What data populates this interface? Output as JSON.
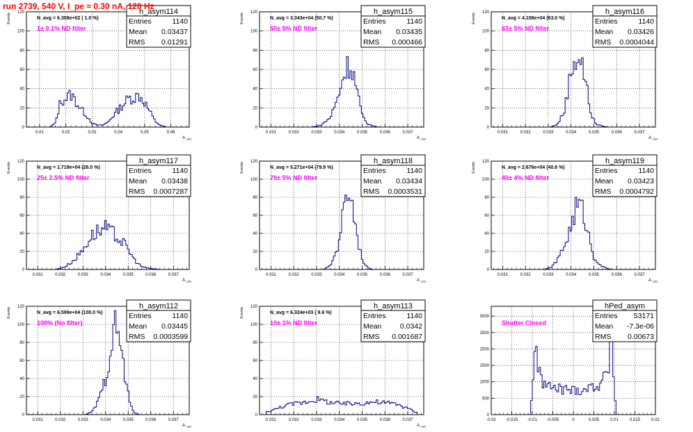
{
  "run_title": "run 2739,   540 V, I_pe ≈ 0.30 nA, 120 Hz",
  "colors": {
    "title": "#ff0000",
    "histogram": "#000080",
    "annotation": "#ff00ff",
    "grid": "#000000"
  },
  "stats_labels": {
    "entries": "Entries",
    "mean": "Mean",
    "rms": "RMS"
  },
  "chart_data": [
    {
      "type": "histogram",
      "name": "h_asym114",
      "xlabel": "A",
      "xlabel_sub": "LED",
      "ylabel": "Events",
      "xlim": [
        0.005,
        0.067
      ],
      "ylim": [
        0,
        120
      ],
      "grid": true,
      "xticks": [
        0.01,
        0.02,
        0.03,
        0.04,
        0.05,
        0.06
      ],
      "xticklabels": [
        "0.01",
        "0.02",
        "0.03",
        "0.04",
        "0.05",
        "0.06"
      ],
      "yticks": [
        0,
        20,
        40,
        60,
        80,
        100,
        120
      ],
      "yticklabels": [
        "0",
        "20",
        "40",
        "60",
        "80",
        "100",
        "120"
      ],
      "nbins": 100,
      "profile": [
        [
          0.014,
          0
        ],
        [
          0.016,
          4
        ],
        [
          0.018,
          27
        ],
        [
          0.02,
          30
        ],
        [
          0.022,
          34
        ],
        [
          0.024,
          26
        ],
        [
          0.026,
          18
        ],
        [
          0.028,
          12
        ],
        [
          0.03,
          4
        ],
        [
          0.032,
          2
        ],
        [
          0.034,
          2
        ],
        [
          0.036,
          5
        ],
        [
          0.038,
          12
        ],
        [
          0.04,
          18
        ],
        [
          0.042,
          24
        ],
        [
          0.044,
          30
        ],
        [
          0.046,
          31
        ],
        [
          0.048,
          33
        ],
        [
          0.05,
          26
        ],
        [
          0.052,
          16
        ],
        [
          0.054,
          6
        ],
        [
          0.056,
          2
        ],
        [
          0.058,
          0
        ]
      ],
      "n_avg_text": "N_avg = 6.308e+02 ( 1.0 %)",
      "filter_text": "1± 0.1% ND filter",
      "stats": {
        "entries": "1140",
        "mean": "0.03437",
        "rms": "0.01291"
      }
    },
    {
      "type": "histogram",
      "name": "h_asym115",
      "xlabel": "A",
      "xlabel_sub": "LED",
      "ylabel": "Events",
      "xlim": [
        0.0305,
        0.0377
      ],
      "ylim": [
        0,
        120
      ],
      "grid": true,
      "xticks": [
        0.031,
        0.032,
        0.033,
        0.034,
        0.035,
        0.036,
        0.037
      ],
      "xticklabels": [
        "0.031",
        "0.032",
        "0.033",
        "0.034",
        "0.035",
        "0.036",
        "0.037"
      ],
      "yticks": [
        0,
        20,
        40,
        60,
        80,
        100,
        120
      ],
      "yticklabels": [
        "0",
        "20",
        "40",
        "60",
        "80",
        "100",
        "120"
      ],
      "nbins": 100,
      "profile": [
        [
          0.0328,
          0
        ],
        [
          0.0332,
          2
        ],
        [
          0.0336,
          10
        ],
        [
          0.0339,
          28
        ],
        [
          0.0342,
          55
        ],
        [
          0.0344,
          66
        ],
        [
          0.0346,
          58
        ],
        [
          0.0348,
          35
        ],
        [
          0.035,
          12
        ],
        [
          0.0352,
          4
        ],
        [
          0.0355,
          1
        ],
        [
          0.0357,
          0
        ]
      ],
      "n_avg_text": "N_avg = 3.343e+04 (50.7 %)",
      "filter_text": "50± 5% ND filter",
      "stats": {
        "entries": "1140",
        "mean": "0.03435",
        "rms": "0.000466"
      }
    },
    {
      "type": "histogram",
      "name": "h_asym116",
      "xlabel": "A",
      "xlabel_sub": "LED",
      "ylabel": "Events",
      "xlim": [
        0.0305,
        0.0377
      ],
      "ylim": [
        0,
        120
      ],
      "grid": true,
      "xticks": [
        0.031,
        0.032,
        0.033,
        0.034,
        0.035,
        0.036,
        0.037
      ],
      "xticklabels": [
        "0.031",
        "0.032",
        "0.033",
        "0.034",
        "0.035",
        "0.036",
        "0.037"
      ],
      "yticks": [
        0,
        20,
        40,
        60,
        80,
        100,
        120
      ],
      "yticklabels": [
        "0",
        "20",
        "40",
        "60",
        "80",
        "100",
        "120"
      ],
      "nbins": 100,
      "profile": [
        [
          0.0331,
          0
        ],
        [
          0.0334,
          3
        ],
        [
          0.0337,
          16
        ],
        [
          0.0339,
          45
        ],
        [
          0.0341,
          68
        ],
        [
          0.0343,
          74
        ],
        [
          0.0345,
          65
        ],
        [
          0.0347,
          38
        ],
        [
          0.0349,
          12
        ],
        [
          0.0351,
          3
        ],
        [
          0.0354,
          1
        ],
        [
          0.0356,
          0
        ]
      ],
      "n_avg_text": "N_avg = 4.158e+04 (63.0 %)",
      "filter_text": "63± 5% ND filter",
      "stats": {
        "entries": "1140",
        "mean": "0.03426",
        "rms": "0.0004044"
      }
    },
    {
      "type": "histogram",
      "name": "h_asym117",
      "xlabel": "A",
      "xlabel_sub": "LED",
      "ylabel": "Events",
      "xlim": [
        0.0305,
        0.0377
      ],
      "ylim": [
        0,
        120
      ],
      "grid": true,
      "xticks": [
        0.031,
        0.032,
        0.033,
        0.034,
        0.035,
        0.036,
        0.037
      ],
      "xticklabels": [
        "0.031",
        "0.032",
        "0.033",
        "0.034",
        "0.035",
        "0.036",
        "0.037"
      ],
      "yticks": [
        0,
        20,
        40,
        60,
        80,
        100,
        120
      ],
      "yticklabels": [
        "0",
        "20",
        "40",
        "60",
        "80",
        "100",
        "120"
      ],
      "nbins": 100,
      "profile": [
        [
          0.0318,
          0
        ],
        [
          0.0322,
          3
        ],
        [
          0.0326,
          10
        ],
        [
          0.033,
          22
        ],
        [
          0.0333,
          35
        ],
        [
          0.0336,
          42
        ],
        [
          0.034,
          45
        ],
        [
          0.0343,
          40
        ],
        [
          0.0347,
          32
        ],
        [
          0.035,
          22
        ],
        [
          0.0353,
          10
        ],
        [
          0.0356,
          3
        ],
        [
          0.036,
          1
        ],
        [
          0.0364,
          0
        ]
      ],
      "n_avg_text": "N_avg = 1.719e+04 (26.0 %)",
      "filter_text": "25± 2.5% ND filter",
      "stats": {
        "entries": "1140",
        "mean": "0.03438",
        "rms": "0.0007287"
      }
    },
    {
      "type": "histogram",
      "name": "h_asym118",
      "xlabel": "A",
      "xlabel_sub": "LED",
      "ylabel": "Events",
      "xlim": [
        0.0305,
        0.0377
      ],
      "ylim": [
        0,
        120
      ],
      "grid": true,
      "xticks": [
        0.031,
        0.032,
        0.033,
        0.034,
        0.035,
        0.036,
        0.037
      ],
      "xticklabels": [
        "0.031",
        "0.032",
        "0.033",
        "0.034",
        "0.035",
        "0.036",
        "0.037"
      ],
      "yticks": [
        0,
        20,
        40,
        60,
        80,
        100,
        120
      ],
      "yticklabels": [
        "0",
        "20",
        "40",
        "60",
        "80",
        "100",
        "120"
      ],
      "nbins": 100,
      "profile": [
        [
          0.0333,
          0
        ],
        [
          0.0336,
          4
        ],
        [
          0.0339,
          22
        ],
        [
          0.0341,
          52
        ],
        [
          0.0343,
          80
        ],
        [
          0.0344,
          92
        ],
        [
          0.0345,
          84
        ],
        [
          0.0347,
          52
        ],
        [
          0.0349,
          22
        ],
        [
          0.0351,
          6
        ],
        [
          0.0353,
          1
        ],
        [
          0.0355,
          0
        ]
      ],
      "n_avg_text": "N_avg = 5.271e+04 (79.9 %)",
      "filter_text": "79± 5% ND filter",
      "stats": {
        "entries": "1140",
        "mean": "0.03434",
        "rms": "0.0003531"
      }
    },
    {
      "type": "histogram",
      "name": "h_asym119",
      "xlabel": "A",
      "xlabel_sub": "LED",
      "ylabel": "Events",
      "xlim": [
        0.0305,
        0.0377
      ],
      "ylim": [
        0,
        120
      ],
      "grid": true,
      "xticks": [
        0.031,
        0.032,
        0.033,
        0.034,
        0.035,
        0.036,
        0.037
      ],
      "xticklabels": [
        "0.031",
        "0.032",
        "0.033",
        "0.034",
        "0.035",
        "0.036",
        "0.037"
      ],
      "yticks": [
        0,
        20,
        40,
        60,
        80,
        100,
        120
      ],
      "yticklabels": [
        "0",
        "20",
        "40",
        "60",
        "80",
        "100",
        "120"
      ],
      "nbins": 100,
      "profile": [
        [
          0.0328,
          0
        ],
        [
          0.0331,
          2
        ],
        [
          0.0334,
          10
        ],
        [
          0.0337,
          26
        ],
        [
          0.034,
          48
        ],
        [
          0.0342,
          68
        ],
        [
          0.0344,
          72
        ],
        [
          0.0346,
          58
        ],
        [
          0.0348,
          35
        ],
        [
          0.035,
          14
        ],
        [
          0.0353,
          4
        ],
        [
          0.0356,
          1
        ],
        [
          0.0358,
          0
        ]
      ],
      "n_avg_text": "N_avg = 2.676e+04 (40.6 %)",
      "filter_text": "40± 4% ND filter",
      "stats": {
        "entries": "1140",
        "mean": "0.03423",
        "rms": "0.0004792"
      }
    },
    {
      "type": "histogram",
      "name": "h_asym112",
      "xlabel": "A",
      "xlabel_sub": "LED",
      "ylabel": "Events",
      "xlim": [
        0.0305,
        0.0377
      ],
      "ylim": [
        0,
        120
      ],
      "grid": true,
      "xticks": [
        0.031,
        0.032,
        0.033,
        0.034,
        0.035,
        0.036,
        0.037
      ],
      "xticklabels": [
        "0.031",
        "0.032",
        "0.033",
        "0.034",
        "0.035",
        "0.036",
        "0.037"
      ],
      "yticks": [
        0,
        20,
        40,
        60,
        80,
        100,
        120
      ],
      "yticklabels": [
        "0",
        "20",
        "40",
        "60",
        "80",
        "100",
        "120"
      ],
      "nbins": 100,
      "profile": [
        [
          0.0331,
          0
        ],
        [
          0.0334,
          3
        ],
        [
          0.0337,
          16
        ],
        [
          0.034,
          40
        ],
        [
          0.0342,
          70
        ],
        [
          0.0344,
          95
        ],
        [
          0.0345,
          100
        ],
        [
          0.0347,
          70
        ],
        [
          0.0349,
          35
        ],
        [
          0.0351,
          10
        ],
        [
          0.0353,
          2
        ],
        [
          0.0355,
          0
        ]
      ],
      "n_avg_text": "N_avg = 6.599e+04 (100.0 %)",
      "filter_text": "100% (No filter)",
      "stats": {
        "entries": "1140",
        "mean": "0.03445",
        "rms": "0.0003599"
      }
    },
    {
      "type": "histogram",
      "name": "h_asym113",
      "xlabel": "A",
      "xlabel_sub": "LED",
      "ylabel": "Events",
      "xlim": [
        0.0305,
        0.0377
      ],
      "ylim": [
        0,
        120
      ],
      "grid": true,
      "xticks": [
        0.031,
        0.032,
        0.033,
        0.034,
        0.035,
        0.036,
        0.037
      ],
      "xticklabels": [
        "0.031",
        "0.032",
        "0.033",
        "0.034",
        "0.035",
        "0.036",
        "0.037"
      ],
      "yticks": [
        0,
        20,
        40,
        60,
        80,
        100,
        120
      ],
      "yticklabels": [
        "0",
        "20",
        "40",
        "60",
        "80",
        "100",
        "120"
      ],
      "nbins": 100,
      "profile": [
        [
          0.0308,
          3
        ],
        [
          0.0312,
          6
        ],
        [
          0.0316,
          10
        ],
        [
          0.032,
          12
        ],
        [
          0.0325,
          14
        ],
        [
          0.033,
          17
        ],
        [
          0.0335,
          14
        ],
        [
          0.034,
          12
        ],
        [
          0.0345,
          12
        ],
        [
          0.035,
          13
        ],
        [
          0.0355,
          14
        ],
        [
          0.036,
          13
        ],
        [
          0.0365,
          12
        ],
        [
          0.037,
          7
        ],
        [
          0.0374,
          2
        ]
      ],
      "n_avg_text": "N_avg = 6.324e+03 ( 9.6 %)",
      "filter_text": "10± 1% ND filter",
      "stats": {
        "entries": "1140",
        "mean": "0.0342",
        "rms": "0.001687"
      }
    },
    {
      "type": "histogram",
      "name": "hPed_asym",
      "xlabel": "",
      "xlabel_sub": "",
      "ylabel": "",
      "xlim": [
        -0.02,
        0.02
      ],
      "ylim": [
        0,
        3300
      ],
      "grid": true,
      "xticks": [
        -0.02,
        -0.015,
        -0.01,
        -0.005,
        0,
        0.005,
        0.01,
        0.015,
        0.02
      ],
      "xticklabels": [
        "-0.02",
        "-0.015",
        "-0.01",
        "-0.005",
        "0",
        "0.005",
        "0.01",
        "0.015",
        "0.02"
      ],
      "yticks": [
        0,
        500,
        1000,
        1500,
        2000,
        2500,
        3000
      ],
      "yticklabels": [
        "0",
        "500",
        "1000",
        "1500",
        "2000",
        "2500",
        "3000"
      ],
      "nbins": 100,
      "profile": [
        [
          -0.0104,
          0
        ],
        [
          -0.0098,
          1200
        ],
        [
          -0.0092,
          2700
        ],
        [
          -0.0087,
          1400
        ],
        [
          -0.008,
          1100
        ],
        [
          -0.007,
          930
        ],
        [
          -0.005,
          800
        ],
        [
          -0.002,
          770
        ],
        [
          0.0,
          740
        ],
        [
          0.002,
          760
        ],
        [
          0.004,
          820
        ],
        [
          0.006,
          900
        ],
        [
          0.0075,
          1100
        ],
        [
          0.0085,
          1300
        ],
        [
          0.0093,
          2750
        ],
        [
          0.0098,
          1300
        ],
        [
          0.0104,
          0
        ]
      ],
      "n_avg_text": "",
      "filter_text": "Shutter Closed",
      "stats": {
        "entries": "53171",
        "mean": "-7.3e-06",
        "rms": "0.00673"
      }
    }
  ]
}
